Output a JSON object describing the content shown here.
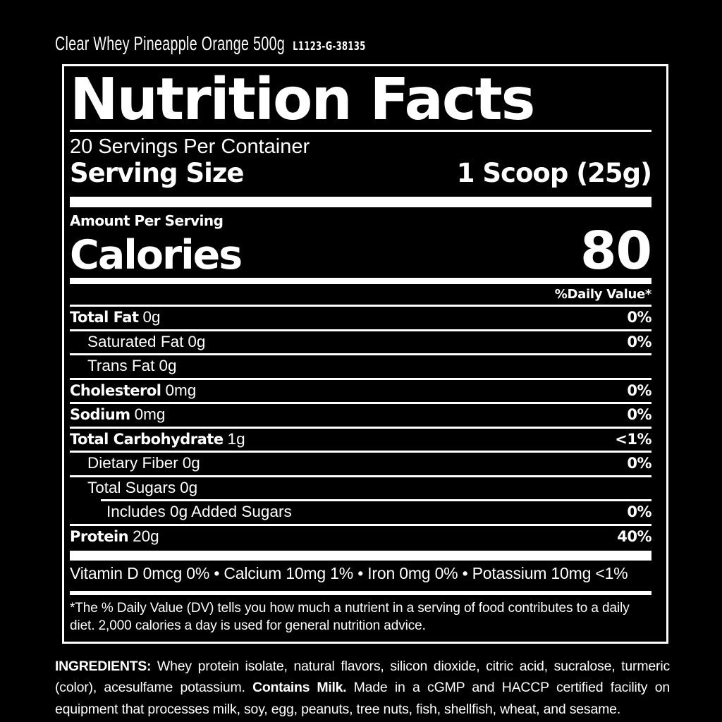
{
  "colors": {
    "background": "#000000",
    "foreground": "#ffffff"
  },
  "product": {
    "title": "Clear Whey Pineapple Orange 500g",
    "lot": "L1123-G-38135"
  },
  "panel": {
    "title": "Nutrition Facts",
    "servings": "20 Servings Per Container",
    "serving_size_label": "Serving Size",
    "serving_size_value": "1 Scoop (25g)",
    "amount_per_serving": "Amount Per Serving",
    "calories_label": "Calories",
    "calories_value": "80",
    "daily_value_header": "%Daily Value*",
    "rows": [
      {
        "name": "Total Fat",
        "amount": "0g",
        "dv": "0%",
        "bold": true,
        "indent": 0
      },
      {
        "name": "Saturated Fat",
        "amount": "0g",
        "dv": "0%",
        "bold": false,
        "indent": 1
      },
      {
        "name": "Trans Fat",
        "amount": "0g",
        "dv": "",
        "bold": false,
        "indent": 1
      },
      {
        "name": "Cholesterol",
        "amount": "0mg",
        "dv": "0%",
        "bold": true,
        "indent": 0
      },
      {
        "name": "Sodium",
        "amount": "0mg",
        "dv": "0%",
        "bold": true,
        "indent": 0
      },
      {
        "name": "Total Carbohydrate",
        "amount": "1g",
        "dv": "<1%",
        "bold": true,
        "indent": 0
      },
      {
        "name": "Dietary Fiber",
        "amount": "0g",
        "dv": "0%",
        "bold": false,
        "indent": 1
      },
      {
        "name": "Total Sugars",
        "amount": "0g",
        "dv": "",
        "bold": false,
        "indent": 1
      },
      {
        "name": "Includes 0g Added Sugars",
        "amount": "",
        "dv": "0%",
        "bold": false,
        "indent": 2
      },
      {
        "name": "Protein",
        "amount": "20g",
        "dv": "40%",
        "bold": true,
        "indent": 0
      }
    ],
    "micronutrients": "Vitamin D 0mcg 0% • Calcium 10mg 1% • Iron 0mg 0% • Potassium 10mg <1%",
    "footnote": "*The % Daily Value (DV) tells you how much a nutrient in a serving of food contributes to a daily diet. 2,000 calories a day is used for general nutrition advice."
  },
  "ingredients": {
    "label": "INGREDIENTS:",
    "text1": " Whey protein isolate, natural flavors, silicon dioxide, citric acid, sucralose, turmeric (color), acesulfame potassium. ",
    "contains": "Contains Milk.",
    "text2": " Made in a cGMP and HACCP certified facility on equipment that processes milk, soy, egg, peanuts, tree nuts, fish, shellfish, wheat, and sesame."
  }
}
